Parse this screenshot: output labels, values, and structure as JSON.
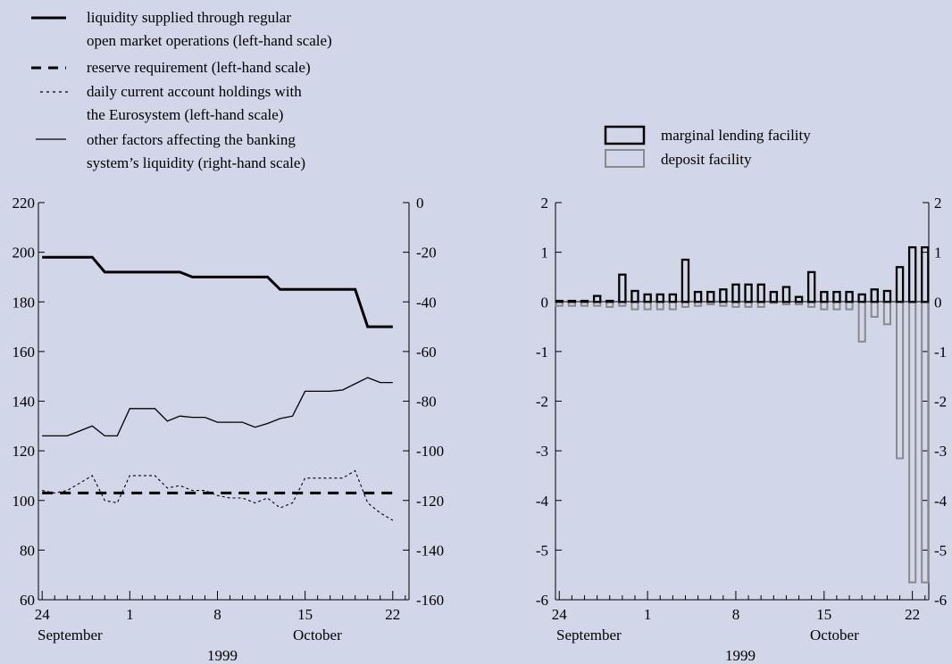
{
  "colors": {
    "background": "#d1d6e8",
    "ink": "#000000",
    "deposit": "#8a8a8a"
  },
  "left_legend": [
    {
      "line1": "liquidity supplied through regular",
      "line2": "open market operations (left-hand scale)",
      "style": "thick-solid"
    },
    {
      "line1": "reserve requirement (left-hand scale)",
      "line2": "",
      "style": "thick-dashed"
    },
    {
      "line1": "daily current account holdings with",
      "line2": "the Eurosystem (left-hand scale)",
      "style": "thin-dotted"
    },
    {
      "line1": "other factors affecting the banking",
      "line2": "system’s liquidity (right-hand scale)",
      "style": "thin-solid"
    }
  ],
  "right_legend": [
    {
      "label": "marginal lending facility",
      "style": "black-box"
    },
    {
      "label": "deposit facility",
      "style": "grey-box"
    }
  ],
  "chart_data": [
    {
      "type": "line",
      "x_tick_labels": [
        "24",
        "1",
        "8",
        "15",
        "22"
      ],
      "x_month_labels": [
        "September",
        "October"
      ],
      "x_year_label": "1999",
      "x_day_range": [
        -0.3,
        29.3
      ],
      "x_tick_days": [
        0,
        7,
        14,
        21,
        28
      ],
      "left_axis": {
        "ylim": [
          60,
          220
        ],
        "ticks": [
          "60",
          "80",
          "100",
          "120",
          "140",
          "160",
          "180",
          "200",
          "220"
        ]
      },
      "right_axis": {
        "ylim": [
          -160,
          0
        ],
        "ticks": [
          "-160",
          "-140",
          "-120",
          "-100",
          "-80",
          "-60",
          "-40",
          "-20",
          "0"
        ]
      },
      "series": [
        {
          "axis": "left",
          "style": "thick-solid",
          "x": [
            0,
            1,
            2,
            3,
            4,
            5,
            6,
            7,
            8,
            9,
            10,
            11,
            12,
            13,
            14,
            15,
            16,
            17,
            18,
            19,
            20,
            21,
            22,
            23,
            24,
            25,
            26,
            27,
            28
          ],
          "y": [
            198,
            198,
            198,
            198,
            198,
            192,
            192,
            192,
            192,
            192,
            192,
            192,
            190,
            190,
            190,
            190,
            190,
            190,
            190,
            185,
            185,
            185,
            185,
            185,
            185,
            185,
            170,
            170,
            170
          ]
        },
        {
          "axis": "left",
          "style": "thick-dashed",
          "x": [
            0,
            28
          ],
          "y": [
            103,
            103
          ]
        },
        {
          "axis": "left",
          "style": "thin-dotted",
          "x": [
            0,
            1,
            2,
            3,
            4,
            5,
            6,
            7,
            8,
            9,
            10,
            11,
            12,
            13,
            14,
            15,
            16,
            17,
            18,
            19,
            20,
            21,
            22,
            23,
            24,
            25,
            26,
            27,
            28
          ],
          "y": [
            104,
            103,
            104,
            107,
            110,
            100,
            99,
            110,
            110,
            110,
            105,
            106,
            104,
            104,
            102,
            101,
            101,
            99,
            101,
            97,
            99,
            109,
            109,
            109,
            109,
            112,
            99,
            95,
            92
          ]
        },
        {
          "axis": "right",
          "style": "thin-solid",
          "x": [
            0,
            1,
            2,
            3,
            4,
            5,
            6,
            7,
            8,
            9,
            10,
            11,
            12,
            13,
            14,
            15,
            16,
            17,
            18,
            19,
            20,
            21,
            22,
            23,
            24,
            25,
            26,
            27,
            28
          ],
          "y": [
            -94,
            -94,
            -94,
            -92,
            -90,
            -94,
            -94,
            -83,
            -83,
            -83,
            -88,
            -86,
            -86.5,
            -86.5,
            -88.5,
            -88.5,
            -88.5,
            -90.5,
            -89,
            -87,
            -86,
            -76,
            -76,
            -76,
            -75.5,
            -73,
            -70.5,
            -72.5,
            -72.5
          ]
        }
      ]
    },
    {
      "type": "bar",
      "x_tick_labels": [
        "24",
        "1",
        "8",
        "15",
        "22"
      ],
      "x_month_labels": [
        "September",
        "October"
      ],
      "x_year_label": "1999",
      "x_day_range": [
        -0.3,
        29.3
      ],
      "x_tick_days": [
        0,
        7,
        14,
        21,
        28
      ],
      "ylim": [
        -6,
        2
      ],
      "y_ticks": [
        "-6",
        "-5",
        "-4",
        "-3",
        "-2",
        "-1",
        "0",
        "1",
        "2"
      ],
      "y_ticks_right": [
        "-6",
        "-5",
        "-4",
        "-3",
        "-2",
        "-1",
        "0",
        "1",
        "2"
      ],
      "days": [
        0,
        1,
        2,
        3,
        4,
        5,
        6,
        7,
        8,
        9,
        10,
        11,
        12,
        13,
        14,
        15,
        16,
        17,
        18,
        19,
        20,
        21,
        22,
        23,
        24,
        25,
        26,
        27,
        28
      ],
      "series": [
        {
          "style": "black-box",
          "values": [
            0.02,
            0.02,
            0.02,
            0.12,
            0.02,
            0.55,
            0.22,
            0.15,
            0.15,
            0.15,
            0.85,
            0.2,
            0.2,
            0.25,
            0.35,
            0.35,
            0.35,
            0.2,
            0.3,
            0.1,
            0.6,
            0.2,
            0.2,
            0.2,
            0.15,
            0.25,
            0.22,
            0.7,
            1.1
          ]
        },
        {
          "style": "grey-box",
          "values": [
            -0.08,
            -0.08,
            -0.08,
            -0.08,
            -0.1,
            -0.08,
            -0.15,
            -0.15,
            -0.15,
            -0.15,
            -0.1,
            -0.08,
            -0.05,
            -0.08,
            -0.1,
            -0.1,
            -0.1,
            -0.02,
            -0.05,
            -0.05,
            -0.1,
            -0.15,
            -0.15,
            -0.15,
            -0.8,
            -0.3,
            -0.45,
            -3.15,
            -5.65
          ]
        }
      ],
      "extra_day": {
        "day": 29,
        "black": 1.1,
        "grey": -5.65
      }
    }
  ]
}
